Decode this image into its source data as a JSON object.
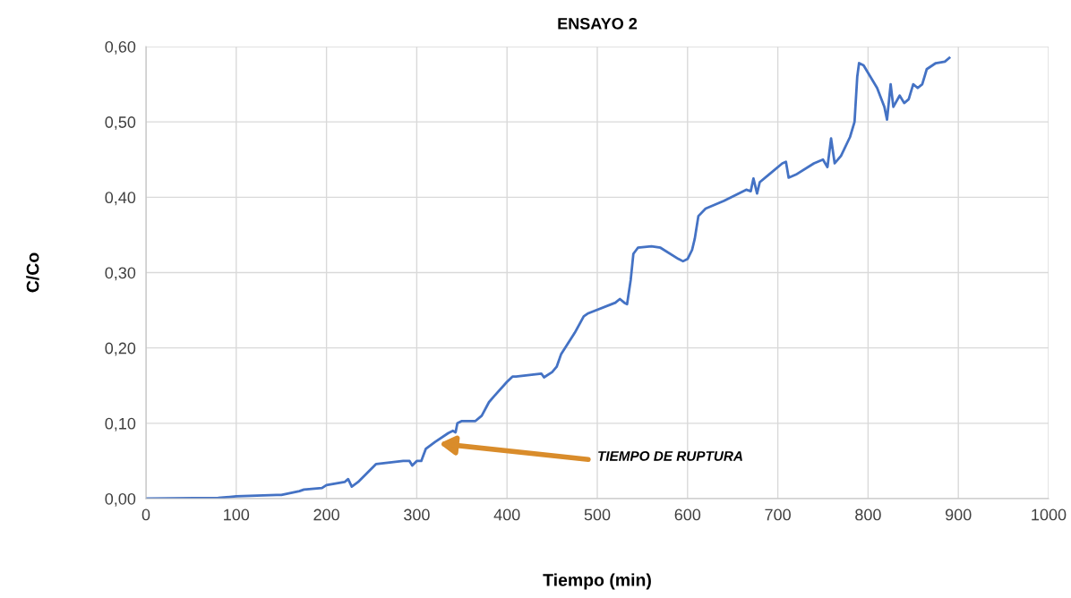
{
  "chart_data": {
    "type": "line",
    "title": "ENSAYO 2",
    "xlabel": "Tiempo (min)",
    "ylabel": "C/Co",
    "xlim": [
      0,
      1000
    ],
    "xticks": [
      0,
      100,
      200,
      300,
      400,
      500,
      600,
      700,
      800,
      900,
      1000
    ],
    "ylim": [
      0,
      0.6
    ],
    "yticks": [
      {
        "value": 0,
        "label": "0,00"
      },
      {
        "value": 0.1,
        "label": "0,10"
      },
      {
        "value": 0.2,
        "label": "0,20"
      },
      {
        "value": 0.3,
        "label": "0,30"
      },
      {
        "value": 0.4,
        "label": "0,40"
      },
      {
        "value": 0.5,
        "label": "0,50"
      },
      {
        "value": 0.6,
        "label": "0,60"
      }
    ],
    "grid": true,
    "marker": "none",
    "line_style": "solid",
    "annotations": [
      "TIEMPO DE RUPTURA"
    ],
    "series": [
      {
        "color": "#4472c4",
        "x": [
          0,
          80,
          100,
          145,
          150,
          170,
          175,
          195,
          200,
          220,
          224,
          228,
          235,
          255,
          285,
          292,
          295,
          300,
          305,
          310,
          320,
          335,
          340,
          343,
          345,
          350,
          365,
          372,
          380,
          385,
          400,
          406,
          410,
          438,
          441,
          450,
          455,
          460,
          475,
          485,
          490,
          520,
          525,
          530,
          533,
          537,
          540,
          545,
          560,
          570,
          590,
          595,
          600,
          605,
          608,
          612,
          620,
          640,
          665,
          670,
          673,
          677,
          680,
          690,
          705,
          709,
          712,
          720,
          740,
          750,
          755,
          759,
          763,
          770,
          780,
          785,
          788,
          790,
          795,
          810,
          818,
          821,
          825,
          828,
          835,
          840,
          845,
          850,
          855,
          860,
          865,
          875,
          885,
          890
        ],
        "values": [
          0,
          0.001,
          0.003,
          0.005,
          0.005,
          0.01,
          0.012,
          0.014,
          0.018,
          0.022,
          0.026,
          0.016,
          0.022,
          0.046,
          0.05,
          0.05,
          0.044,
          0.05,
          0.05,
          0.066,
          0.075,
          0.087,
          0.09,
          0.088,
          0.1,
          0.103,
          0.103,
          0.11,
          0.128,
          0.135,
          0.155,
          0.162,
          0.162,
          0.166,
          0.161,
          0.168,
          0.175,
          0.192,
          0.22,
          0.242,
          0.246,
          0.26,
          0.265,
          0.26,
          0.258,
          0.29,
          0.325,
          0.333,
          0.335,
          0.333,
          0.318,
          0.315,
          0.318,
          0.33,
          0.345,
          0.375,
          0.385,
          0.395,
          0.41,
          0.408,
          0.425,
          0.405,
          0.42,
          0.43,
          0.445,
          0.447,
          0.426,
          0.43,
          0.445,
          0.45,
          0.44,
          0.478,
          0.445,
          0.455,
          0.48,
          0.5,
          0.56,
          0.578,
          0.575,
          0.545,
          0.52,
          0.503,
          0.55,
          0.52,
          0.535,
          0.525,
          0.53,
          0.55,
          0.545,
          0.55,
          0.57,
          0.578,
          0.58,
          0.585
        ]
      }
    ]
  }
}
